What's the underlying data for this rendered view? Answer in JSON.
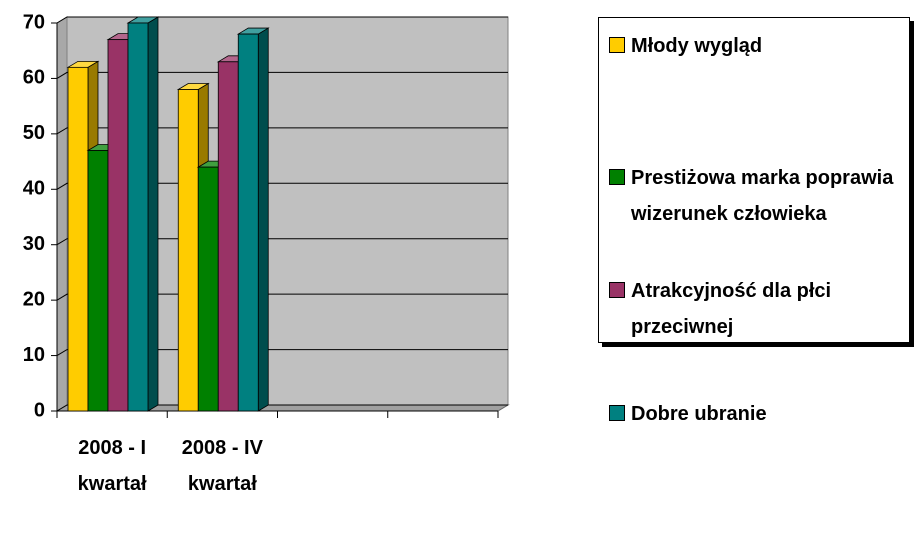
{
  "chart_data": {
    "type": "bar",
    "categories": [
      "2008 - I kwartał",
      "2008 - IV kwartał",
      null,
      null
    ],
    "series": [
      {
        "name": "Młody wygląd",
        "color": "#ffcc00",
        "values": [
          62,
          58,
          null,
          null
        ]
      },
      {
        "name": "Prestiżowa marka poprawia wizerunek człowieka",
        "color": "#008000",
        "values": [
          47,
          44,
          null,
          null
        ]
      },
      {
        "name": "Atrakcyjność dla płci przeciwnej",
        "color": "#993366",
        "values": [
          67,
          63,
          null,
          null
        ]
      },
      {
        "name": "Dobre ubranie",
        "color": "#008080",
        "values": [
          70,
          68,
          null,
          null
        ]
      }
    ],
    "ylim": [
      0,
      70
    ],
    "yticks": [
      0,
      10,
      20,
      30,
      40,
      50,
      60,
      70
    ],
    "grid": true,
    "legend": "right"
  }
}
